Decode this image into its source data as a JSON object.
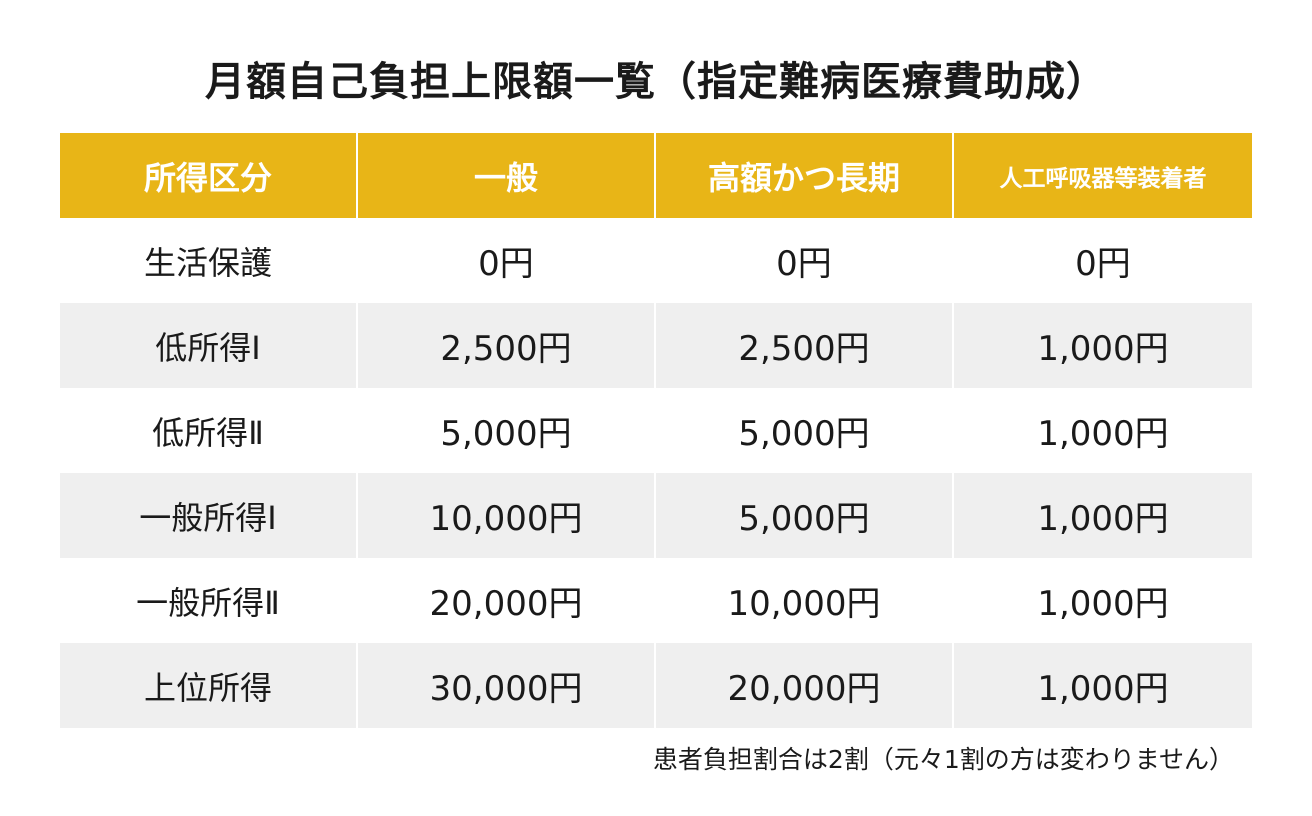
{
  "title": "月額自己負担上限額一覧（指定難病医療費助成）",
  "headers": [
    "所得区分",
    "一般",
    "高額かつ長期",
    "人工呼吸器等装着者"
  ],
  "rows": [
    {
      "category": "生活保護",
      "general": "0円",
      "high_long": "0円",
      "ventilator": "0円"
    },
    {
      "category": "低所得Ⅰ",
      "general": "2,500円",
      "high_long": "2,500円",
      "ventilator": "1,000円"
    },
    {
      "category": "低所得Ⅱ",
      "general": "5,000円",
      "high_long": "5,000円",
      "ventilator": "1,000円"
    },
    {
      "category": "一般所得Ⅰ",
      "general": "10,000円",
      "high_long": "5,000円",
      "ventilator": "1,000円"
    },
    {
      "category": "一般所得Ⅱ",
      "general": "20,000円",
      "high_long": "10,000円",
      "ventilator": "1,000円"
    },
    {
      "category": "上位所得",
      "general": "30,000円",
      "high_long": "20,000円",
      "ventilator": "1,000円"
    }
  ],
  "note": "患者負担割合は2割（元々1割の方は変わりません）",
  "colors": {
    "header_bg": "#e8b517",
    "header_text": "#ffffff",
    "stripe": "#efefef"
  }
}
